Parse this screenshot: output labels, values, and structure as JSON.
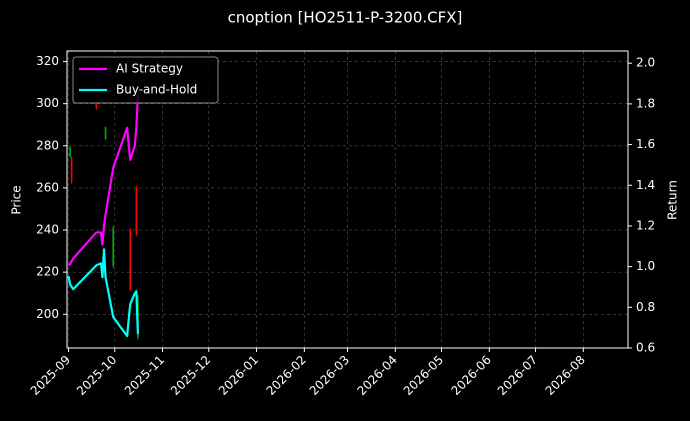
{
  "chart_data": {
    "type": "candlestick",
    "title": "cnoption [HO2511-P-3200.CFX]",
    "ylabel": "Price",
    "y2label": "Return",
    "candles": {
      "x": [
        1,
        2,
        18,
        24,
        29,
        40,
        44,
        45
      ],
      "open": [
        275,
        274,
        301,
        283,
        223,
        240,
        260,
        189
      ],
      "high": [
        280,
        275,
        301,
        289,
        242,
        241,
        261,
        209
      ],
      "low": [
        274,
        262,
        297,
        283,
        222,
        211,
        237,
        188
      ],
      "close": [
        279,
        263,
        298,
        289,
        241,
        212,
        238,
        208
      ],
      "up_color": "#00b000",
      "down_color": "#ff0000"
    },
    "x": [
      0,
      1,
      3,
      18,
      21,
      22,
      23,
      24,
      29,
      38,
      40,
      43,
      44,
      45
    ],
    "series": [
      {
        "name": "AI Strategy",
        "color": "#ff00ff",
        "axis": "y2",
        "values": [
          1.006,
          1.012,
          1.04,
          1.168,
          1.168,
          1.109,
          1.2,
          1.256,
          1.486,
          1.682,
          1.525,
          1.594,
          1.682,
          1.843
        ]
      },
      {
        "name": "Buy-and-Hold",
        "color": "#00ffff",
        "axis": "y2",
        "values": [
          0.953,
          0.913,
          0.889,
          1.006,
          1.016,
          0.948,
          1.085,
          0.948,
          0.752,
          0.659,
          0.815,
          0.869,
          0.879,
          0.669
        ]
      }
    ],
    "xlim": [
      -1,
      363
    ],
    "xticks": [
      {
        "value": 0,
        "label": "2025-09"
      },
      {
        "value": 30,
        "label": "2025-10"
      },
      {
        "value": 61,
        "label": "2025-11"
      },
      {
        "value": 91,
        "label": "2025-12"
      },
      {
        "value": 122,
        "label": "2026-01"
      },
      {
        "value": 153,
        "label": "2026-02"
      },
      {
        "value": 181,
        "label": "2026-03"
      },
      {
        "value": 212,
        "label": "2026-04"
      },
      {
        "value": 242,
        "label": "2026-05"
      },
      {
        "value": 273,
        "label": "2026-06"
      },
      {
        "value": 303,
        "label": "2026-07"
      },
      {
        "value": 334,
        "label": "2026-08"
      }
    ],
    "ylim": [
      184,
      325
    ],
    "yticks": [
      200,
      220,
      240,
      260,
      280,
      300,
      320
    ],
    "y2lim": [
      0.6,
      2.06
    ],
    "y2ticks": [
      0.6,
      0.8,
      {
        "value": 1.0,
        "label": "1.0"
      },
      1.2,
      1.4,
      1.6,
      1.8,
      {
        "value": 2.0,
        "label": "2.0"
      }
    ],
    "grid": true,
    "legend": "upper left"
  }
}
